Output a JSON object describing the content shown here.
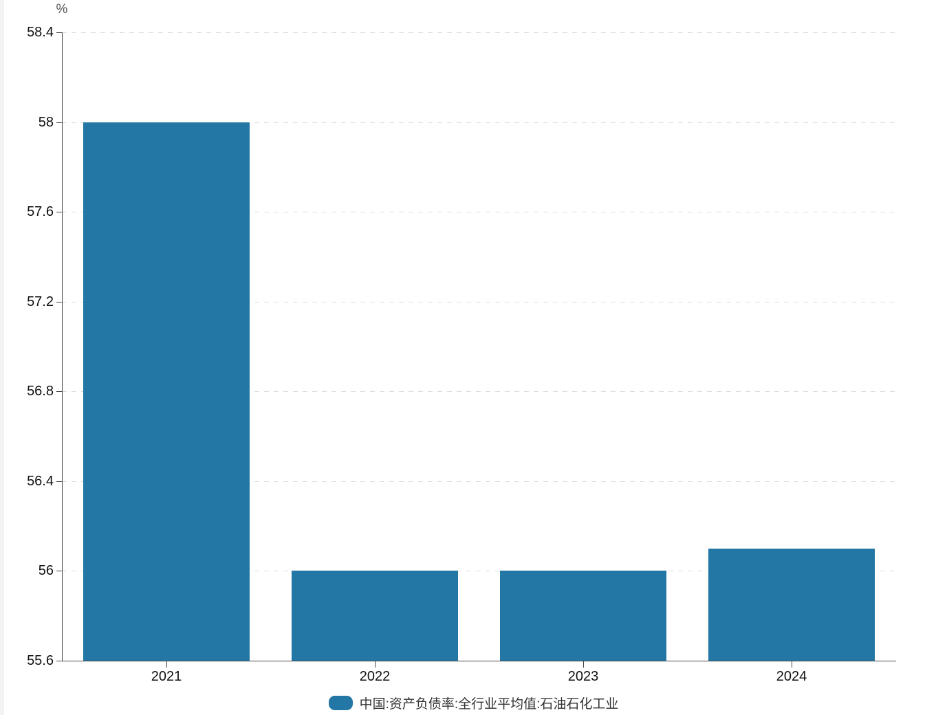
{
  "chart": {
    "unit_label": "%",
    "legend": {
      "label": "中国:资产负债率:全行业平均值:石油石化工业"
    }
  },
  "chart_data": {
    "type": "bar",
    "title": "",
    "xlabel": "",
    "ylabel": "%",
    "categories": [
      "2021",
      "2022",
      "2023",
      "2024"
    ],
    "values": [
      58,
      56,
      56,
      56.1
    ],
    "series": [
      {
        "name": "中国:资产负债率:全行业平均值:石油石化工业",
        "values": [
          58,
          56,
          56,
          56.1
        ]
      }
    ],
    "ylim": [
      55.6,
      58.4
    ],
    "ytick_values": [
      58.4,
      58,
      57.6,
      57.2,
      56.8,
      56.4,
      56,
      55.6
    ],
    "ytick_labels": [
      "58.4",
      "58",
      "57.6",
      "57.2",
      "56.8",
      "56.4",
      "56",
      "55.6"
    ],
    "grid": true,
    "grid_style": "dashed",
    "legend_position": "bottom",
    "colors": {
      "bar": "#2277A5",
      "grid": "#dcdcdc",
      "axis": "#444444",
      "text": "#111111",
      "unit_text": "#555555"
    }
  }
}
